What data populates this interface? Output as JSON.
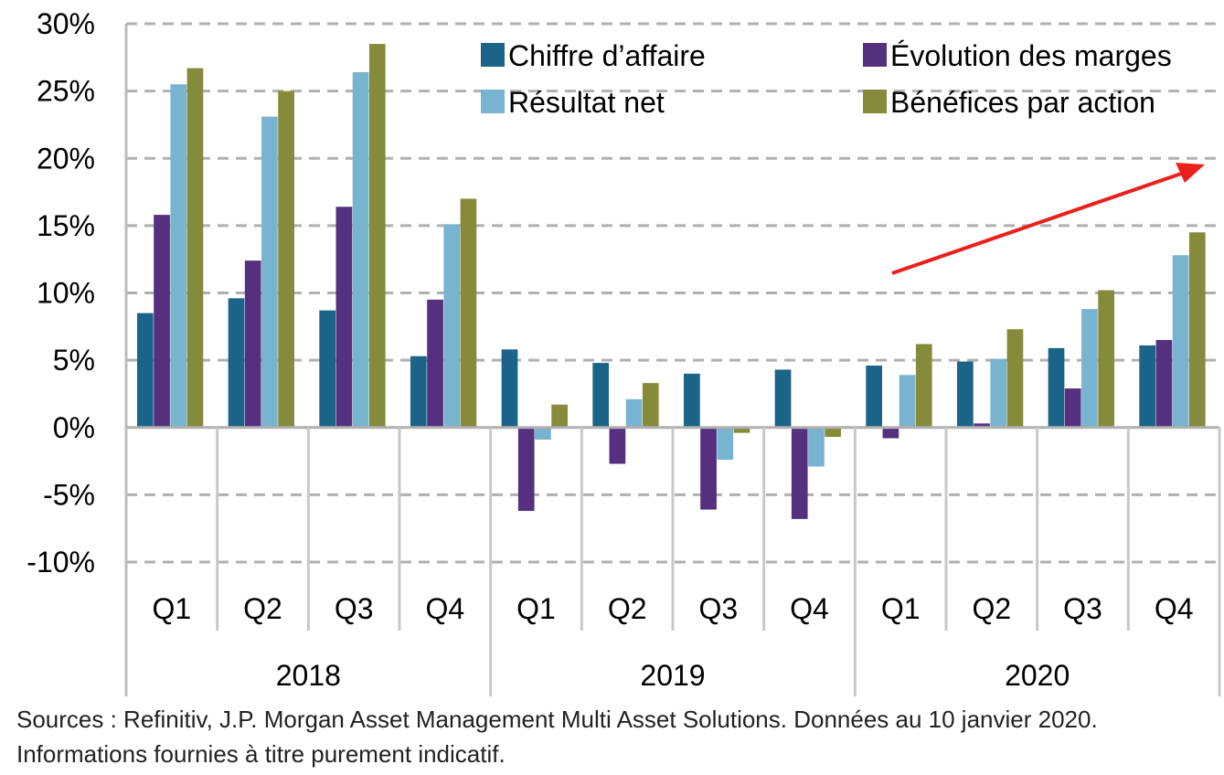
{
  "chart_data": {
    "type": "bar",
    "title": "",
    "xlabel": "",
    "ylabel": "",
    "ylim": [
      -10,
      30
    ],
    "yticks": [
      -10,
      -5,
      0,
      5,
      10,
      15,
      20,
      25,
      30
    ],
    "ytick_labels": [
      "-10%",
      "-5%",
      "0%",
      "5%",
      "10%",
      "15%",
      "20%",
      "25%",
      "30%"
    ],
    "grid": true,
    "grid_style": "dashed",
    "legend_position": "top",
    "categories": [
      "Q1",
      "Q2",
      "Q3",
      "Q4",
      "Q1",
      "Q2",
      "Q3",
      "Q4",
      "Q1",
      "Q2",
      "Q3",
      "Q4"
    ],
    "groups": [
      {
        "label": "2018",
        "count": 4
      },
      {
        "label": "2019",
        "count": 4
      },
      {
        "label": "2020",
        "count": 4
      }
    ],
    "series": [
      {
        "name": "Chiffre d’affaire",
        "color": "#1b6388",
        "values": [
          8.5,
          9.6,
          8.7,
          5.3,
          5.8,
          4.8,
          4.0,
          4.3,
          4.6,
          4.9,
          5.9,
          6.1
        ]
      },
      {
        "name": "Évolution des marges",
        "color": "#54307f",
        "values": [
          15.8,
          12.4,
          16.4,
          9.5,
          -6.2,
          -2.7,
          -6.1,
          -6.8,
          -0.8,
          0.3,
          2.9,
          6.5
        ]
      },
      {
        "name": "Résultat net",
        "color": "#78b3cf",
        "values": [
          25.5,
          23.1,
          26.4,
          15.1,
          -0.9,
          2.1,
          -2.4,
          -2.9,
          3.9,
          5.1,
          8.8,
          12.8
        ]
      },
      {
        "name": "Bénéfices par action",
        "color": "#858b3b",
        "values": [
          26.7,
          25.0,
          28.5,
          17.0,
          1.7,
          3.3,
          -0.4,
          -0.7,
          6.2,
          7.3,
          10.2,
          14.5
        ]
      }
    ],
    "legend_layout": [
      [
        "Chiffre d’affaire",
        "Évolution des marges"
      ],
      [
        "Résultat net",
        "Bénéfices par action"
      ]
    ],
    "annotation": {
      "type": "trend-arrow",
      "color": "#e8211d"
    }
  },
  "source": {
    "line1": "Sources : Refinitiv, J.P. Morgan Asset Management Multi Asset Solutions. Données au 10 janvier 2020.",
    "line2": "Informations fournies à titre purement indicatif."
  }
}
